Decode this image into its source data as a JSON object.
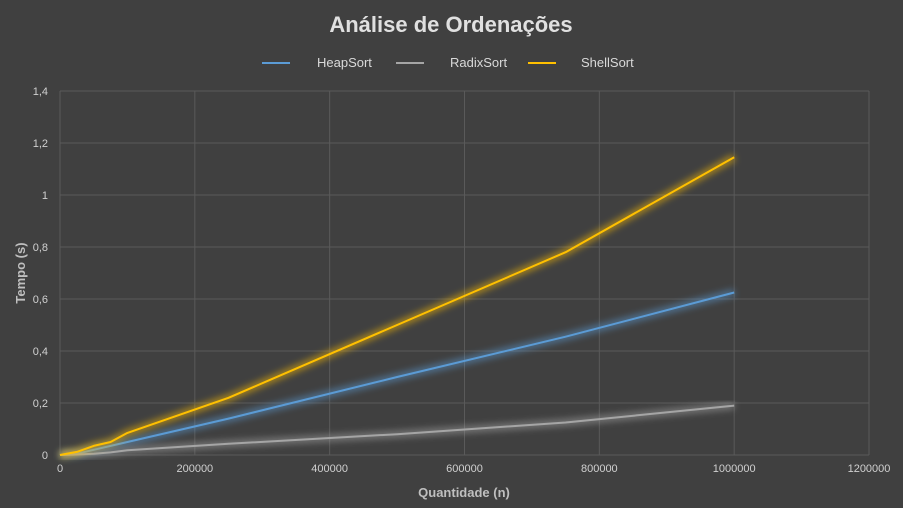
{
  "chart_data": {
    "type": "line",
    "title": "Análise de Ordenações",
    "xlabel": "Quantidade (n)",
    "ylabel": "Tempo (s)",
    "xlim": [
      0,
      1200000
    ],
    "ylim": [
      0,
      1.4
    ],
    "x_ticks": [
      "0",
      "200000",
      "400000",
      "600000",
      "800000",
      "1000000",
      "1200000"
    ],
    "y_ticks": [
      "0",
      "0,2",
      "0,4",
      "0,6",
      "0,8",
      "1",
      "1,2",
      "1,4"
    ],
    "grid": true,
    "legend_position": "top",
    "series": [
      {
        "name": "HeapSort",
        "color": "#5B9BD5",
        "points": [
          [
            0,
            0
          ],
          [
            25000,
            0.005
          ],
          [
            50000,
            0.02
          ],
          [
            75000,
            0.035
          ],
          [
            100000,
            0.05
          ],
          [
            250000,
            0.14
          ],
          [
            500000,
            0.3
          ],
          [
            750000,
            0.455
          ],
          [
            1000000,
            0.625
          ]
        ]
      },
      {
        "name": "RadixSort",
        "color": "#A5A5A5",
        "points": [
          [
            0,
            0
          ],
          [
            25000,
            0.002
          ],
          [
            50000,
            0.005
          ],
          [
            75000,
            0.01
          ],
          [
            100000,
            0.018
          ],
          [
            250000,
            0.043
          ],
          [
            500000,
            0.08
          ],
          [
            750000,
            0.125
          ],
          [
            1000000,
            0.19
          ]
        ]
      },
      {
        "name": "ShellSort",
        "color": "#FFC000",
        "points": [
          [
            0,
            0
          ],
          [
            25000,
            0.012
          ],
          [
            50000,
            0.035
          ],
          [
            75000,
            0.05
          ],
          [
            100000,
            0.085
          ],
          [
            250000,
            0.22
          ],
          [
            500000,
            0.5
          ],
          [
            750000,
            0.78
          ],
          [
            1000000,
            1.145
          ]
        ]
      }
    ]
  }
}
